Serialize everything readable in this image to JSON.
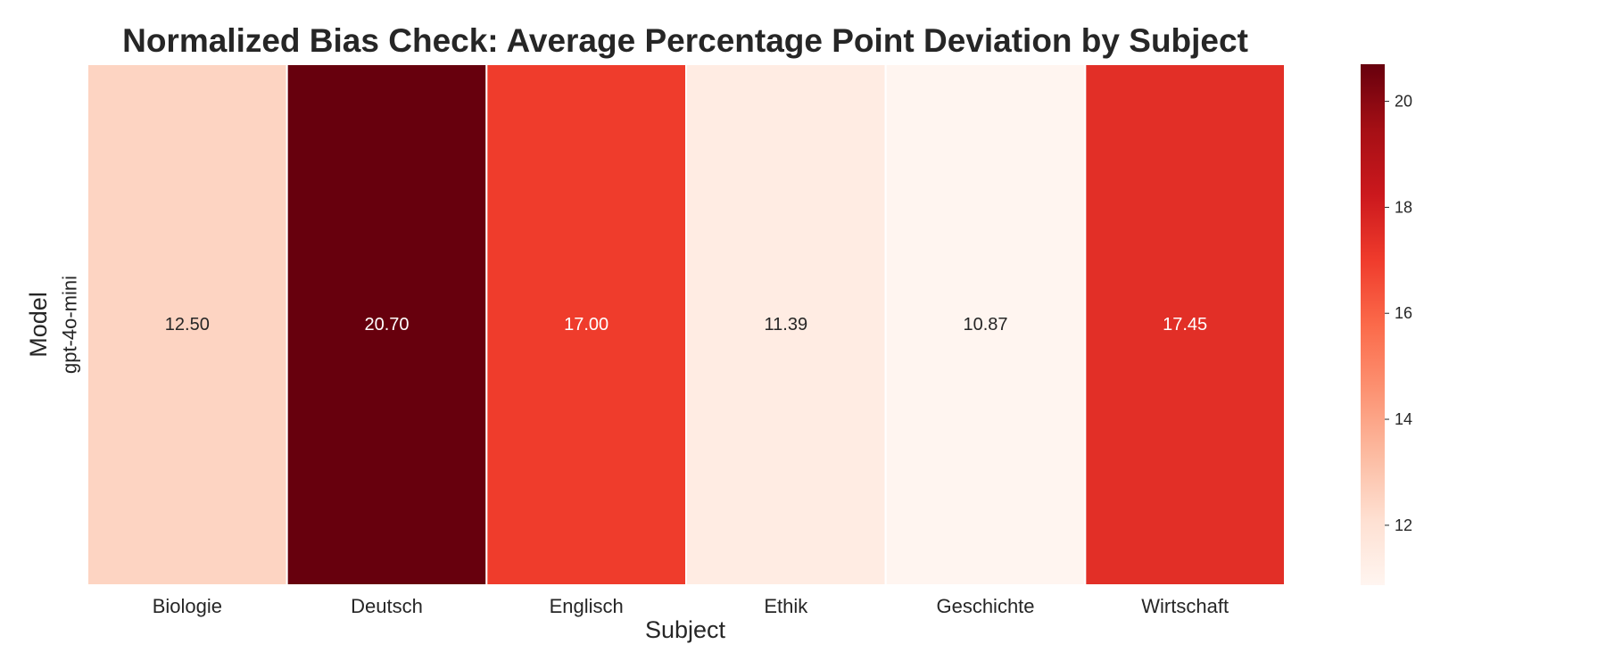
{
  "chart_data": {
    "type": "heatmap",
    "title": "Normalized Bias Check: Average Percentage Point Deviation by Subject",
    "xlabel": "Subject",
    "ylabel": "Model",
    "x_categories": [
      "Biologie",
      "Deutsch",
      "Englisch",
      "Ethik",
      "Geschichte",
      "Wirtschaft"
    ],
    "y_categories": [
      "gpt-4o-mini"
    ],
    "values": [
      [
        12.5,
        20.7,
        17.0,
        11.39,
        10.87,
        17.45
      ]
    ],
    "cell_labels": [
      [
        "12.50",
        "20.70",
        "17.00",
        "11.39",
        "10.87",
        "17.45"
      ]
    ],
    "colorbar": {
      "ticks": [
        12,
        14,
        16,
        18,
        20
      ],
      "tick_labels": [
        "12",
        "14",
        "16",
        "18",
        "20"
      ],
      "vmin": 10.87,
      "vmax": 20.7
    },
    "colormap": "Reds",
    "colors": {
      "low": "#fff5f0",
      "high": "#67000d",
      "text_dark": "#262626",
      "text_light": "#ffffff",
      "cell_border": "#ffffff"
    }
  }
}
